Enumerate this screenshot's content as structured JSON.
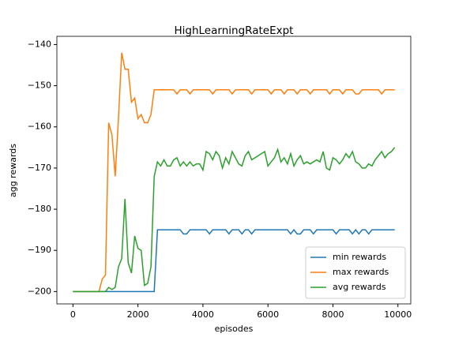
{
  "chart_data": {
    "type": "line",
    "title": "HighLearningRateExpt",
    "xlabel": "episodes",
    "ylabel": "agg rewards",
    "x": [
      0,
      100,
      200,
      300,
      400,
      500,
      600,
      700,
      800,
      900,
      1000,
      1100,
      1200,
      1300,
      1400,
      1500,
      1600,
      1700,
      1800,
      1900,
      2000,
      2100,
      2200,
      2300,
      2400,
      2500,
      2600,
      2700,
      2800,
      2900,
      3000,
      3100,
      3200,
      3300,
      3400,
      3500,
      3600,
      3700,
      3800,
      3900,
      4000,
      4100,
      4200,
      4300,
      4400,
      4500,
      4600,
      4700,
      4800,
      4900,
      5000,
      5100,
      5200,
      5300,
      5400,
      5500,
      5600,
      5700,
      5800,
      5900,
      6000,
      6100,
      6200,
      6300,
      6400,
      6500,
      6600,
      6700,
      6800,
      6900,
      7000,
      7100,
      7200,
      7300,
      7400,
      7500,
      7600,
      7700,
      7800,
      7900,
      8000,
      8100,
      8200,
      8300,
      8400,
      8500,
      8600,
      8700,
      8800,
      8900,
      9000,
      9100,
      9200,
      9300,
      9400,
      9500,
      9600,
      9700,
      9800,
      9900
    ],
    "series": [
      {
        "name": "min rewards",
        "color": "#1f77b4",
        "values": [
          -200,
          -200,
          -200,
          -200,
          -200,
          -200,
          -200,
          -200,
          -200,
          -200,
          -200,
          -200,
          -200,
          -200,
          -200,
          -200,
          -200,
          -200,
          -200,
          -200,
          -200,
          -200,
          -200,
          -200,
          -200,
          -200,
          -185,
          -185,
          -185,
          -185,
          -185,
          -185,
          -185,
          -185,
          -186,
          -186,
          -185,
          -185,
          -185,
          -185,
          -185,
          -185,
          -186,
          -185,
          -185,
          -185,
          -185,
          -185,
          -186,
          -185,
          -185,
          -185,
          -186,
          -185,
          -185,
          -186,
          -185,
          -185,
          -185,
          -185,
          -185,
          -185,
          -185,
          -185,
          -185,
          -185,
          -185,
          -186,
          -185,
          -186,
          -186,
          -185,
          -185,
          -185,
          -186,
          -185,
          -185,
          -185,
          -185,
          -185,
          -185,
          -186,
          -185,
          -185,
          -185,
          -185,
          -186,
          -185,
          -186,
          -185,
          -185,
          -186,
          -185,
          -185,
          -185,
          -185,
          -185,
          -185,
          -185,
          -185
        ]
      },
      {
        "name": "max rewards",
        "color": "#ff7f0e",
        "values": [
          -200,
          -200,
          -200,
          -200,
          -200,
          -200,
          -200,
          -200,
          -200,
          -197,
          -196,
          -159,
          -162,
          -172,
          -158,
          -142,
          -146,
          -146,
          -154,
          -153,
          -158,
          -157,
          -159,
          -159,
          -157,
          -151,
          -151,
          -151,
          -151,
          -151,
          -151,
          -151,
          -152,
          -151,
          -151,
          -151,
          -152,
          -151,
          -151,
          -151,
          -151,
          -151,
          -151,
          -152,
          -151,
          -151,
          -151,
          -151,
          -151,
          -152,
          -151,
          -151,
          -151,
          -151,
          -151,
          -152,
          -151,
          -151,
          -151,
          -151,
          -151,
          -152,
          -151,
          -151,
          -151,
          -152,
          -151,
          -151,
          -151,
          -152,
          -151,
          -151,
          -151,
          -152,
          -151,
          -151,
          -151,
          -151,
          -151,
          -152,
          -151,
          -151,
          -151,
          -152,
          -151,
          -151,
          -151,
          -152,
          -152,
          -151,
          -151,
          -151,
          -151,
          -151,
          -151,
          -152,
          -151,
          -151,
          -151,
          -151
        ]
      },
      {
        "name": "avg rewards",
        "color": "#2ca02c",
        "values": [
          -200,
          -200,
          -200,
          -200,
          -200,
          -200,
          -200,
          -200,
          -200,
          -200,
          -200,
          -199,
          -199.5,
          -199,
          -194,
          -192,
          -177.5,
          -193,
          -195.5,
          -186.5,
          -189.5,
          -190,
          -198.5,
          -198,
          -194,
          -172,
          -168.5,
          -169.5,
          -168,
          -169.5,
          -169.5,
          -168,
          -167.5,
          -169.5,
          -168.5,
          -169.5,
          -168.5,
          -169.5,
          -169,
          -169,
          -170.5,
          -166,
          -166.5,
          -168,
          -166,
          -167,
          -170,
          -167.5,
          -169,
          -166,
          -167.5,
          -169,
          -169.5,
          -167,
          -166,
          -168,
          -167.5,
          -167,
          -166.5,
          -166,
          -169.5,
          -168.5,
          -167.5,
          -165.5,
          -168.5,
          -167.5,
          -169,
          -166.5,
          -169.5,
          -168,
          -167,
          -169,
          -168.5,
          -169,
          -168.5,
          -168,
          -168.5,
          -166,
          -170,
          -170.5,
          -167.5,
          -168,
          -169,
          -168,
          -166.5,
          -167.5,
          -166,
          -168.5,
          -169,
          -170,
          -170,
          -169,
          -169.5,
          -168,
          -167,
          -166,
          -167.5,
          -166.5,
          -166,
          -165
        ]
      }
    ],
    "xlim": [
      -495,
      10395
    ],
    "ylim": [
      -203,
      -138
    ],
    "xticks": [
      0,
      2000,
      4000,
      6000,
      8000,
      10000
    ],
    "yticks": [
      {
        "value": -200,
        "label": "−200"
      },
      {
        "value": -190,
        "label": "−190"
      },
      {
        "value": -180,
        "label": "−180"
      },
      {
        "value": -170,
        "label": "−170"
      },
      {
        "value": -160,
        "label": "−160"
      },
      {
        "value": -150,
        "label": "−150"
      },
      {
        "value": -140,
        "label": "−140"
      }
    ],
    "legend": "lower right"
  }
}
